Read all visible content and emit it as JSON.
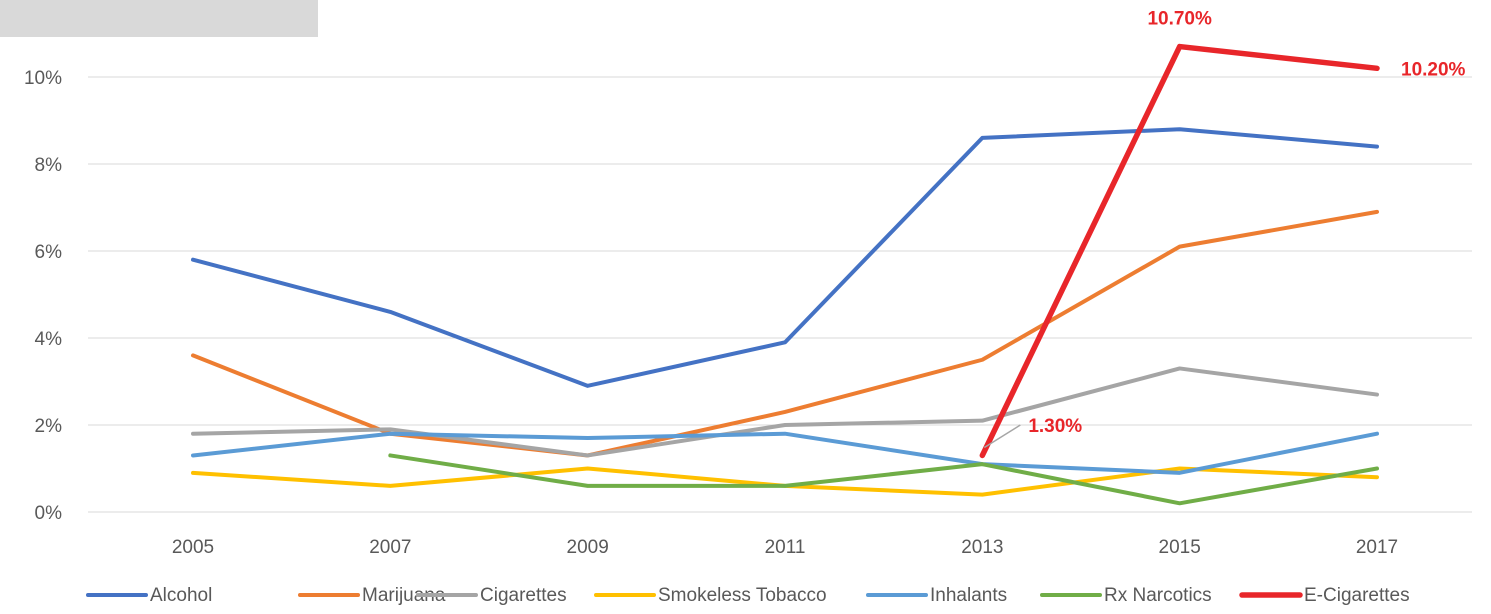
{
  "chart_data": {
    "type": "line",
    "title": "",
    "xlabel": "",
    "ylabel": "",
    "x": [
      "2005",
      "2007",
      "2009",
      "2011",
      "2013",
      "2015",
      "2017"
    ],
    "ylim": [
      0,
      10
    ],
    "y_ticks": [
      0,
      2,
      4,
      6,
      8,
      10
    ],
    "y_tick_labels": [
      "0%",
      "2%",
      "4%",
      "6%",
      "8%",
      "10%"
    ],
    "grid": "horizontal",
    "legend_position": "bottom",
    "series": [
      {
        "name": "Alcohol",
        "color": "#4472c4",
        "values": [
          5.8,
          4.6,
          2.9,
          3.9,
          8.6,
          8.8,
          8.4
        ]
      },
      {
        "name": "Marijuana",
        "color": "#ed7d31",
        "values": [
          3.6,
          1.8,
          1.3,
          2.3,
          3.5,
          6.1,
          6.9
        ]
      },
      {
        "name": "Cigarettes",
        "color": "#a5a5a5",
        "values": [
          1.8,
          1.9,
          1.3,
          2.0,
          2.1,
          3.3,
          2.7
        ]
      },
      {
        "name": "Smokeless Tobacco",
        "color": "#ffc000",
        "values": [
          0.9,
          0.6,
          1.0,
          0.6,
          0.4,
          1.0,
          0.8
        ]
      },
      {
        "name": "Inhalants",
        "color": "#5b9bd5",
        "values": [
          1.3,
          1.8,
          1.7,
          1.8,
          1.1,
          0.9,
          1.8
        ]
      },
      {
        "name": "Rx Narcotics",
        "color": "#70ad47",
        "values": [
          null,
          1.3,
          0.6,
          0.6,
          1.1,
          0.2,
          1.0
        ]
      },
      {
        "name": "E-Cigarettes",
        "color": "#e8262a",
        "values": [
          null,
          null,
          null,
          null,
          1.3,
          10.7,
          10.2
        ]
      }
    ],
    "data_labels": [
      {
        "series": "E-Cigarettes",
        "x": "2013",
        "text": "1.30%"
      },
      {
        "series": "E-Cigarettes",
        "x": "2015",
        "text": "10.70%"
      },
      {
        "series": "E-Cigarettes",
        "x": "2017",
        "text": "10.20%"
      }
    ]
  }
}
